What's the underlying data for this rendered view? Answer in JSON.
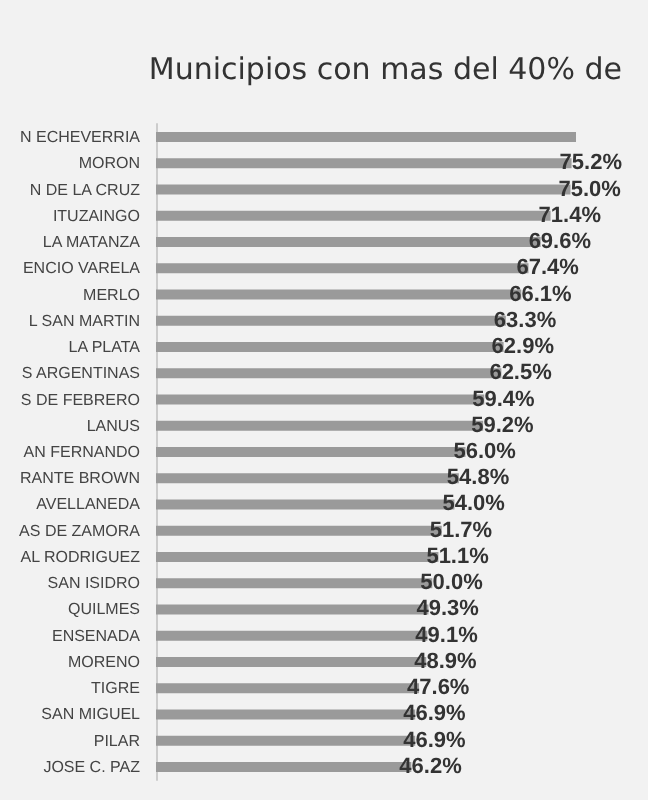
{
  "chart_data": {
    "type": "bar",
    "orientation": "horizontal",
    "title": "Municipios con mas del 40% de",
    "categories": [
      "N ECHEVERRIA",
      "MORON",
      "N DE LA CRUZ",
      "ITUZAINGO",
      "LA MATANZA",
      "ENCIO VARELA",
      "MERLO",
      "L SAN MARTIN",
      "LA PLATA",
      "S ARGENTINAS",
      "S DE FEBRERO",
      "LANUS",
      "AN FERNANDO",
      "RANTE BROWN",
      "AVELLANEDA",
      "AS DE ZAMORA",
      "AL RODRIGUEZ",
      "SAN ISIDRO",
      "QUILMES",
      "ENSENADA",
      "MORENO",
      "TIGRE",
      "SAN MIGUEL",
      "PILAR",
      "JOSE C. PAZ"
    ],
    "values": [
      76,
      75.2,
      75.0,
      71.4,
      69.6,
      67.4,
      66.1,
      63.3,
      62.9,
      62.5,
      59.4,
      59.2,
      56.0,
      54.8,
      54.0,
      51.7,
      51.1,
      50.0,
      49.3,
      49.1,
      48.9,
      47.6,
      46.9,
      46.9,
      46.2
    ],
    "value_labels": [
      null,
      "75.2%",
      "75.0%",
      "71.4%",
      "69.6%",
      "67.4%",
      "66.1%",
      "63.3%",
      "62.9%",
      "62.5%",
      "59.4%",
      "59.2%",
      "56.0%",
      "54.8%",
      "54.0%",
      "51.7%",
      "51.1%",
      "50.0%",
      "49.3%",
      "49.1%",
      "48.9%",
      "47.6%",
      "46.9%",
      "46.9%",
      "46.2%"
    ],
    "color": "#9a9a9a"
  }
}
